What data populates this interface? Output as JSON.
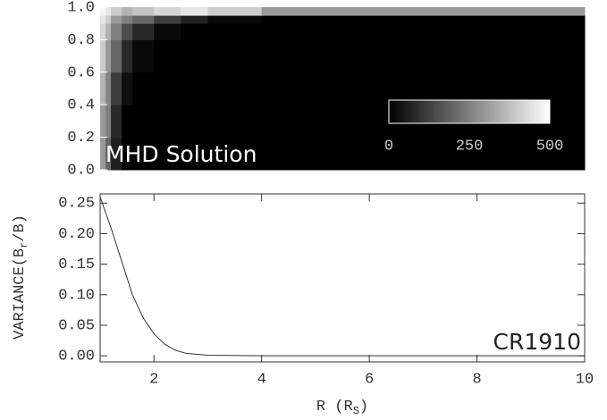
{
  "chart_data": [
    {
      "type": "heatmap",
      "annotation": "MHD Solution",
      "x": [
        1,
        1.1,
        1.2,
        1.4,
        1.6,
        2,
        2.5,
        3,
        4,
        6,
        8,
        10
      ],
      "y": [
        0,
        0.2,
        0.4,
        0.6,
        0.8,
        0.9,
        0.95,
        1.0
      ],
      "z": [
        [
          300,
          200,
          60,
          0,
          0,
          0,
          0,
          0,
          0,
          0,
          0
        ],
        [
          300,
          250,
          80,
          0,
          0,
          0,
          0,
          0,
          0,
          0,
          0
        ],
        [
          350,
          260,
          120,
          30,
          0,
          0,
          0,
          0,
          0,
          0,
          0
        ],
        [
          400,
          300,
          200,
          80,
          20,
          0,
          0,
          0,
          0,
          0,
          0
        ],
        [
          420,
          350,
          250,
          150,
          80,
          20,
          0,
          0,
          0,
          0,
          0
        ],
        [
          450,
          400,
          300,
          250,
          200,
          120,
          60,
          20,
          0,
          0,
          0
        ],
        [
          480,
          450,
          400,
          350,
          380,
          420,
          450,
          400,
          300,
          300,
          300
        ]
      ],
      "xlim": [
        1,
        10
      ],
      "ylim": [
        0,
        1
      ],
      "yticks": [
        {
          "value": 0,
          "label": "0.0"
        },
        {
          "value": 0.2,
          "label": "0.2"
        },
        {
          "value": 0.4,
          "label": "0.4"
        },
        {
          "value": 0.6,
          "label": "0.6"
        },
        {
          "value": 0.8,
          "label": "0.8"
        },
        {
          "value": 1,
          "label": "1.0"
        }
      ],
      "colormap": [
        "#000000",
        "#ffffff"
      ],
      "clim": [
        0,
        500
      ],
      "cticks": [
        0,
        250,
        500
      ]
    },
    {
      "type": "line",
      "annotation": "CR1910",
      "xlabel": [
        "R (R",
        "S",
        ")"
      ],
      "ylabel": [
        "VARIANCE(B",
        "r",
        "/B)"
      ],
      "x": [
        1,
        1.2,
        1.4,
        1.6,
        1.8,
        2,
        2.2,
        2.4,
        2.6,
        3,
        4,
        6,
        8,
        10
      ],
      "values": [
        0.26,
        0.21,
        0.155,
        0.1,
        0.062,
        0.036,
        0.019,
        0.009,
        0.004,
        0.001,
        0,
        0,
        0,
        0
      ],
      "color": "#333333",
      "xlim": [
        1,
        10
      ],
      "ylim": [
        -0.01,
        0.265
      ],
      "xticks": [
        2,
        4,
        6,
        8,
        10
      ],
      "yticks": [
        {
          "value": 0,
          "label": "0.00"
        },
        0.05,
        {
          "value": 0.1,
          "label": "0.10"
        },
        0.15,
        {
          "value": 0.2,
          "label": "0.20"
        },
        0.25
      ]
    }
  ]
}
